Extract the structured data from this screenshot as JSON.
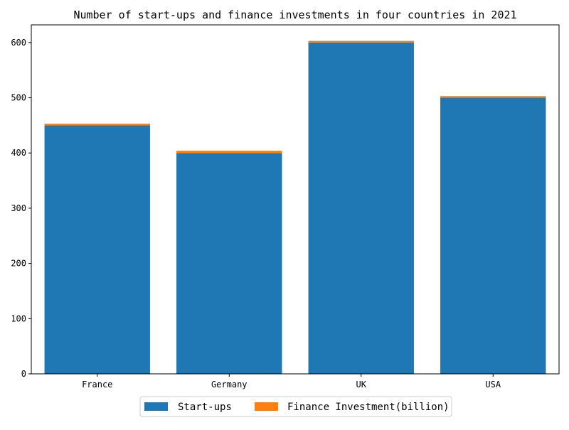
{
  "chart_data": {
    "type": "bar",
    "stacked": true,
    "title": "Number of start-ups and finance investments in four countries in 2021",
    "xlabel": "",
    "ylabel": "",
    "categories": [
      "France",
      "Germany",
      "UK",
      "USA"
    ],
    "series": [
      {
        "name": "Start-ups",
        "color": "#1f77b4",
        "values": [
          450,
          400,
          600,
          500
        ]
      },
      {
        "name": "Finance Investment(billion)",
        "color": "#ff7f0e",
        "values": [
          3,
          4,
          3,
          3
        ]
      }
    ],
    "ylim": [
      0,
      632
    ],
    "yticks": [
      0,
      100,
      200,
      300,
      400,
      500,
      600
    ],
    "ytick_labels": [
      "0",
      "100",
      "200",
      "300",
      "400",
      "500",
      "600"
    ],
    "grid": false,
    "legend_position": "bottom-center"
  }
}
